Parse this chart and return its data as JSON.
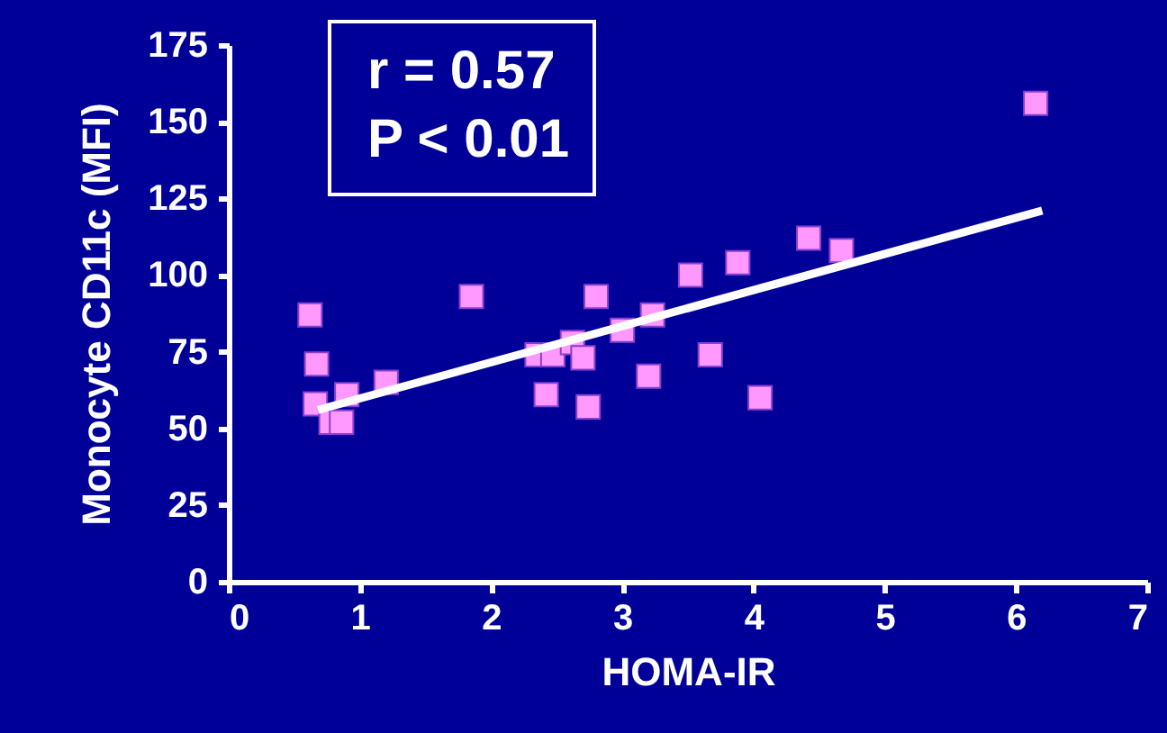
{
  "chart_data": {
    "type": "scatter",
    "xlabel": "HOMA-IR",
    "ylabel": "Monocyte CD11c (MFI)",
    "annotations": [
      "r = 0.57",
      "P < 0.01"
    ],
    "xlim": [
      0,
      7
    ],
    "xticks": [
      0,
      1,
      2,
      3,
      4,
      5,
      6,
      7
    ],
    "ylim": [
      0,
      175
    ],
    "yticks": [
      0,
      25,
      50,
      75,
      100,
      125,
      150,
      175
    ],
    "marker": "square",
    "series": [
      {
        "color": "#ff99ff",
        "x": [
          0.62,
          0.67,
          0.66,
          0.78,
          0.86,
          0.9,
          1.2,
          1.85,
          2.35,
          2.47,
          2.42,
          2.62,
          2.7,
          2.8,
          2.74,
          3.0,
          3.23,
          3.2,
          3.52,
          3.67,
          3.88,
          4.05,
          4.42,
          4.67,
          6.15
        ],
        "values": [
          87,
          71,
          58,
          52,
          52,
          61,
          65,
          93,
          74,
          74,
          61,
          78,
          73,
          93,
          57,
          82,
          87,
          67,
          100,
          74,
          104,
          60,
          112,
          108,
          156
        ]
      },
      {
        "type": "line",
        "color": "#ffffff",
        "marker": "none",
        "x": [
          0.68,
          6.2
        ],
        "values": [
          56,
          121
        ]
      }
    ]
  }
}
